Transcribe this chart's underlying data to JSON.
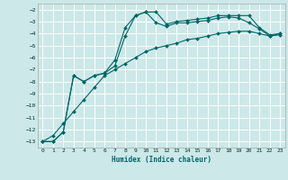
{
  "xlabel": "Humidex (Indice chaleur)",
  "bg_color": "#cce8e8",
  "grid_color": "#ffffff",
  "line_color": "#006666",
  "tick_color": "#003333",
  "xlim": [
    -0.5,
    23.5
  ],
  "ylim": [
    -13.5,
    -1.5
  ],
  "xticks": [
    0,
    1,
    2,
    3,
    4,
    5,
    6,
    7,
    8,
    9,
    10,
    11,
    12,
    13,
    14,
    15,
    16,
    17,
    18,
    19,
    20,
    21,
    22,
    23
  ],
  "yticks": [
    -13,
    -12,
    -11,
    -10,
    -9,
    -8,
    -7,
    -6,
    -5,
    -4,
    -3,
    -2
  ],
  "line1_x": [
    0,
    1,
    2,
    3,
    4,
    5,
    6,
    7,
    8,
    9,
    10,
    11,
    12,
    13,
    14,
    15,
    16,
    17,
    18,
    19,
    20,
    21,
    22,
    23
  ],
  "line1_y": [
    -13,
    -13,
    -12.2,
    -7.5,
    -8,
    -7.5,
    -7.3,
    -6.2,
    -3.5,
    -2.5,
    -2.2,
    -2.2,
    -3.2,
    -3.0,
    -2.9,
    -2.8,
    -2.7,
    -2.5,
    -2.5,
    -2.5,
    -2.5,
    -3.5,
    -4.1,
    -4.0
  ],
  "line2_x": [
    0,
    1,
    2,
    3,
    4,
    5,
    6,
    7,
    8,
    9,
    10,
    11,
    12,
    13,
    14,
    15,
    16,
    17,
    18,
    19,
    20,
    21,
    22,
    23
  ],
  "line2_y": [
    -13,
    -13,
    -12.2,
    -7.5,
    -8,
    -7.5,
    -7.3,
    -6.7,
    -4.2,
    -2.5,
    -2.2,
    -3.1,
    -3.4,
    -3.1,
    -3.1,
    -3.0,
    -2.9,
    -2.7,
    -2.6,
    -2.7,
    -3.1,
    -3.6,
    -4.2,
    -4.0
  ],
  "line3_x": [
    0,
    1,
    2,
    3,
    4,
    5,
    6,
    7,
    8,
    9,
    10,
    11,
    12,
    13,
    14,
    15,
    16,
    17,
    18,
    19,
    20,
    21,
    22,
    23
  ],
  "line3_y": [
    -13,
    -12.5,
    -11.5,
    -10.5,
    -9.5,
    -8.5,
    -7.5,
    -7.0,
    -6.5,
    -6.0,
    -5.5,
    -5.2,
    -5.0,
    -4.8,
    -4.5,
    -4.4,
    -4.2,
    -4.0,
    -3.9,
    -3.8,
    -3.8,
    -4.0,
    -4.2,
    -4.1
  ]
}
